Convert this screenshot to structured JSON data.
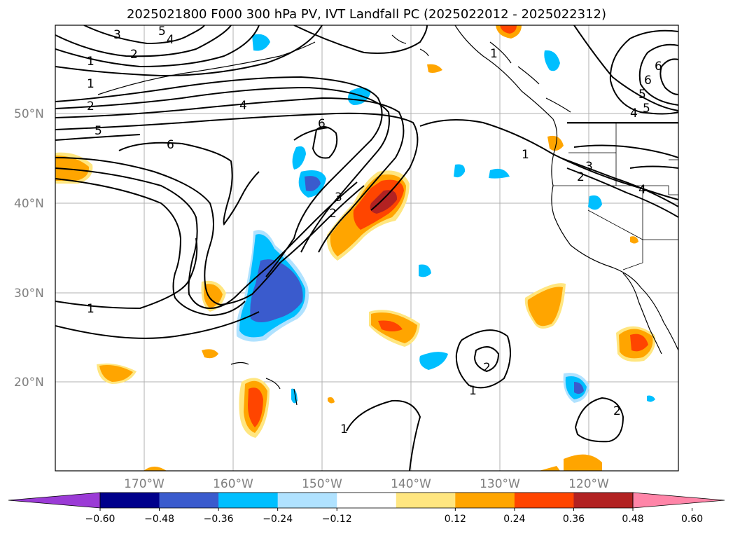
{
  "title": "2025021800 F000 300 hPa PV, IVT Landfall PC (2025022012 - 2025022312)",
  "lat_labels": [
    "50°N",
    "40°N",
    "30°N",
    "20°N"
  ],
  "lon_labels": [
    "170°W",
    "160°W",
    "150°W",
    "140°W",
    "130°W",
    "120°W"
  ],
  "contour_labels": [
    "3",
    "5",
    "4",
    "2",
    "1",
    "1",
    "2",
    "4",
    "5",
    "6",
    "6",
    "3",
    "2",
    "1",
    "1",
    "2",
    "3",
    "4",
    "5",
    "6",
    "6",
    "5",
    "4",
    "1",
    "2",
    "1",
    "1",
    "2"
  ],
  "colorbar": {
    "ticks": [
      "−0.60",
      "−0.48",
      "−0.36",
      "−0.24",
      "−0.12",
      "0.12",
      "0.24",
      "0.36",
      "0.48",
      "0.60"
    ],
    "colors": [
      "#9b3bd6",
      "#00008b",
      "#3a5bcd",
      "#00bfff",
      "#b0e2ff",
      "#ffffff",
      "#ffe680",
      "#ffa500",
      "#ff4500",
      "#b22222",
      "#ff85a8"
    ]
  }
}
